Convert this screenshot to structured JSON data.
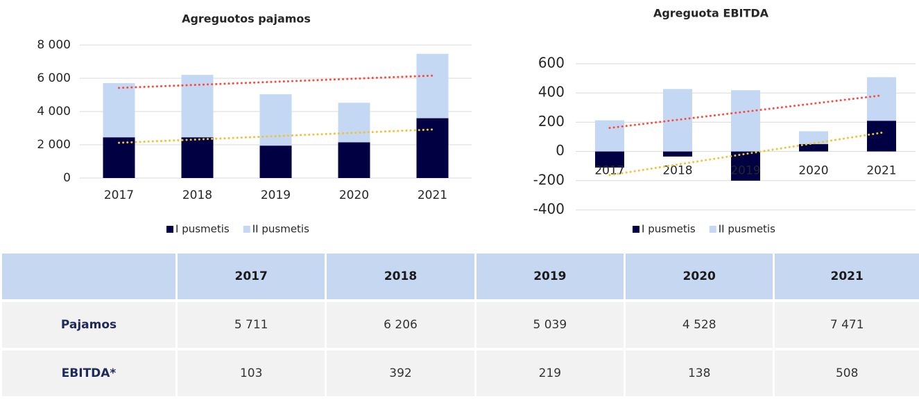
{
  "chart_data": [
    {
      "type": "bar",
      "stacked": true,
      "title": "Agreguotos pajamos",
      "categories": [
        "2017",
        "2018",
        "2019",
        "2020",
        "2021"
      ],
      "series": [
        {
          "name": "I pusmetis",
          "color": "#000042",
          "values": [
            2450,
            2450,
            1950,
            2150,
            3600
          ],
          "trendline_color": "#f2c233"
        },
        {
          "name": "II pusmetis",
          "color": "#c5d8f3",
          "values": [
            3261,
            3756,
            3089,
            2378,
            3871
          ]
        }
      ],
      "total_trendline_color": "#ff4a3a",
      "ylim": [
        0,
        8000
      ],
      "yticks": [
        0,
        {
          "value": 2000,
          "label": "2 000"
        },
        {
          "value": 4000,
          "label": "4 000"
        },
        {
          "value": 6000,
          "label": "6 000"
        },
        {
          "value": 8000,
          "label": "8 000"
        }
      ],
      "grid": true,
      "legend": "bottom"
    },
    {
      "type": "bar",
      "stacked": true,
      "title": "Agreguota EBITDA",
      "categories": [
        "2017",
        "2018",
        "2019",
        "2020",
        "2021"
      ],
      "series": [
        {
          "name": "I pusmetis",
          "color": "#000042",
          "values": [
            -110,
            -35,
            -200,
            50,
            210
          ],
          "trendline_color": "#f2c233"
        },
        {
          "name": "II pusmetis",
          "color": "#c5d8f3",
          "values": [
            213,
            427,
            419,
            88,
            298
          ]
        }
      ],
      "total_trendline_color": "#ff4a3a",
      "ylim": [
        -400,
        600
      ],
      "yticks": [
        -400,
        -200,
        0,
        200,
        400,
        600
      ],
      "grid": true,
      "legend": "bottom"
    }
  ],
  "table": {
    "columns": [
      "2017",
      "2018",
      "2019",
      "2020",
      "2021"
    ],
    "rows": [
      {
        "label": "Pajamos",
        "values": [
          "5 711",
          "6 206",
          "5 039",
          "4 528",
          "7 471"
        ]
      },
      {
        "label": "EBITDA*",
        "values": [
          "103",
          "392",
          "219",
          "138",
          "508"
        ]
      }
    ]
  }
}
